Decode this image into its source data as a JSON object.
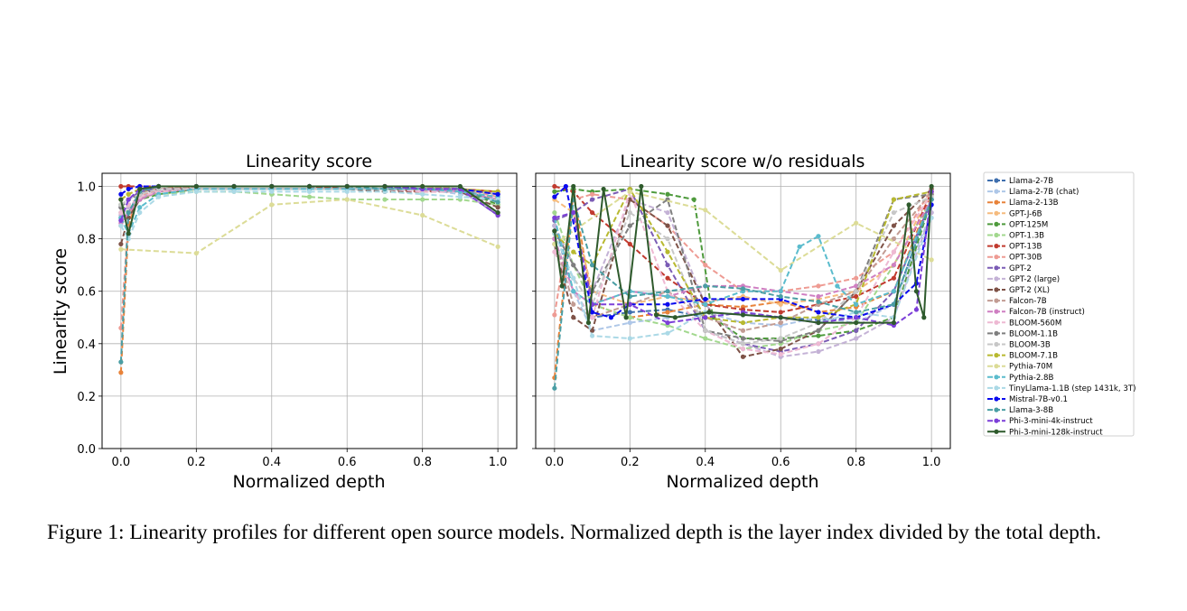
{
  "figure": {
    "caption": "Figure 1: Linearity profiles for different open source models. Normalized depth is the layer index divided by the total depth."
  },
  "legend": [
    {
      "name": "Llama-2-7B",
      "color": "#3f6fae",
      "dash": true
    },
    {
      "name": "Llama-2-7B (chat)",
      "color": "#aec7e8",
      "dash": true
    },
    {
      "name": "Llama-2-13B",
      "color": "#e8833a",
      "dash": true
    },
    {
      "name": "GPT-J-6B",
      "color": "#f5bb7e",
      "dash": true
    },
    {
      "name": "OPT-125M",
      "color": "#4e9a3c",
      "dash": true
    },
    {
      "name": "OPT-1.3B",
      "color": "#a2d88e",
      "dash": true
    },
    {
      "name": "OPT-13B",
      "color": "#c13b2f",
      "dash": true
    },
    {
      "name": "OPT-30B",
      "color": "#ee9b93",
      "dash": true
    },
    {
      "name": "GPT-2",
      "color": "#7b5cb5",
      "dash": true
    },
    {
      "name": "GPT-2 (large)",
      "color": "#c4b2d6",
      "dash": true
    },
    {
      "name": "GPT-2 (XL)",
      "color": "#7e5247",
      "dash": true
    },
    {
      "name": "Falcon-7B",
      "color": "#c29c93",
      "dash": true
    },
    {
      "name": "Falcon-7B (instruct)",
      "color": "#cf7fc2",
      "dash": true
    },
    {
      "name": "BLOOM-560M",
      "color": "#eeb9d3",
      "dash": true
    },
    {
      "name": "BLOOM-1.1B",
      "color": "#7f7f7f",
      "dash": true
    },
    {
      "name": "BLOOM-3B",
      "color": "#c7c7c7",
      "dash": true
    },
    {
      "name": "BLOOM-7.1B",
      "color": "#b8b930",
      "dash": true
    },
    {
      "name": "Pythia-70M",
      "color": "#dcdc97",
      "dash": true
    },
    {
      "name": "Pythia-2.8B",
      "color": "#5bbccd",
      "dash": true
    },
    {
      "name": "TinyLlama-1.1B (step 1431k, 3T)",
      "color": "#abd9e6",
      "dash": true
    },
    {
      "name": "Mistral-7B-v0.1",
      "color": "#0a0aef",
      "dash": true
    },
    {
      "name": "Llama-3-8B",
      "color": "#4a9ea4",
      "dash": true
    },
    {
      "name": "Phi-3-mini-4k-instruct",
      "color": "#7c3fd8",
      "dash": true
    },
    {
      "name": "Phi-3-mini-128k-instruct",
      "color": "#2e5a2c",
      "dash": false
    }
  ],
  "chart_data": [
    {
      "type": "line",
      "title": "Linearity score",
      "xlabel": "Normalized depth",
      "ylabel": "Linearity score",
      "xlim": [
        -0.05,
        1.05
      ],
      "ylim": [
        0.0,
        1.05
      ],
      "xticks": [
        "0.0",
        "0.2",
        "0.4",
        "0.6",
        "0.8",
        "1.0"
      ],
      "yticks": [
        "0.0",
        "0.2",
        "0.4",
        "0.6",
        "0.8",
        "1.0"
      ],
      "grid": true,
      "x": [
        0,
        0.02,
        0.05,
        0.1,
        0.2,
        0.3,
        0.4,
        0.5,
        0.6,
        0.7,
        0.8,
        0.9,
        1.0
      ],
      "series": [
        {
          "name": "Llama-2-7B",
          "y": [
            0.88,
            0.9,
            0.98,
            1,
            1,
            1,
            1,
            1,
            0.99,
            0.99,
            0.99,
            0.98,
            0.95
          ]
        },
        {
          "name": "Llama-2-7B (chat)",
          "y": [
            0.87,
            0.9,
            0.95,
            0.99,
            0.99,
            0.99,
            0.99,
            0.99,
            0.99,
            0.99,
            0.99,
            0.97,
            0.94
          ]
        },
        {
          "name": "Llama-2-13B",
          "y": [
            0.29,
            0.85,
            0.98,
            0.99,
            1,
            1,
            1,
            1,
            1,
            1,
            1,
            0.99,
            0.97
          ]
        },
        {
          "name": "GPT-J-6B",
          "y": [
            0.95,
            0.97,
            0.99,
            1,
            1,
            1,
            1,
            1,
            1,
            1,
            1,
            0.99,
            0.98
          ]
        },
        {
          "name": "OPT-125M",
          "y": [
            0.93,
            0.9,
            0.95,
            0.97,
            0.99,
            0.99,
            0.99,
            0.99,
            0.99,
            0.99,
            0.99,
            0.99,
            0.93
          ]
        },
        {
          "name": "OPT-1.3B",
          "y": [
            0.9,
            0.93,
            0.96,
            0.97,
            0.98,
            0.98,
            0.97,
            0.96,
            0.95,
            0.95,
            0.95,
            0.95,
            0.93
          ]
        },
        {
          "name": "OPT-13B",
          "y": [
            1,
            1,
            1,
            1,
            1,
            1,
            1,
            1,
            0.99,
            0.99,
            0.98,
            0.99,
            0.98
          ]
        },
        {
          "name": "OPT-30B",
          "y": [
            0.46,
            0.88,
            0.96,
            0.99,
            1,
            1,
            1,
            1,
            1,
            1,
            0.99,
            0.99,
            0.96
          ]
        },
        {
          "name": "GPT-2",
          "y": [
            0.92,
            0.95,
            0.98,
            0.99,
            0.99,
            0.99,
            0.99,
            0.99,
            0.99,
            0.99,
            0.99,
            0.99,
            0.89
          ]
        },
        {
          "name": "GPT-2 (large)",
          "y": [
            0.89,
            0.92,
            0.96,
            0.98,
            0.99,
            0.99,
            0.99,
            0.99,
            0.99,
            0.99,
            0.99,
            0.98,
            0.9
          ]
        },
        {
          "name": "GPT-2 (XL)",
          "y": [
            0.78,
            0.88,
            0.95,
            0.98,
            0.99,
            0.99,
            0.99,
            0.99,
            0.99,
            0.98,
            0.98,
            0.98,
            0.92
          ]
        },
        {
          "name": "Falcon-7B",
          "y": [
            0.85,
            0.9,
            0.95,
            0.98,
            0.99,
            0.99,
            0.99,
            0.99,
            0.99,
            0.99,
            0.99,
            0.99,
            0.95
          ]
        },
        {
          "name": "Falcon-7B (instruct)",
          "y": [
            0.86,
            0.9,
            0.95,
            0.98,
            0.99,
            0.99,
            0.99,
            0.99,
            0.99,
            0.99,
            0.99,
            0.98,
            0.95
          ]
        },
        {
          "name": "BLOOM-560M",
          "y": [
            0.9,
            0.93,
            0.96,
            0.98,
            0.99,
            0.99,
            0.99,
            0.99,
            0.99,
            0.99,
            0.98,
            0.98,
            0.96
          ]
        },
        {
          "name": "BLOOM-1.1B",
          "y": [
            0.92,
            0.95,
            0.97,
            0.99,
            0.99,
            0.99,
            0.99,
            0.99,
            0.99,
            0.99,
            0.99,
            0.99,
            0.97
          ]
        },
        {
          "name": "BLOOM-3B",
          "y": [
            0.93,
            0.95,
            0.97,
            0.99,
            0.99,
            0.99,
            0.99,
            0.99,
            0.99,
            0.99,
            0.99,
            0.99,
            0.97
          ]
        },
        {
          "name": "BLOOM-7.1B",
          "y": [
            0.95,
            0.97,
            0.99,
            1,
            1,
            1,
            1,
            1,
            1,
            1,
            0.99,
            0.99,
            0.98
          ]
        },
        {
          "name": "Pythia-70M",
          "x": [
            0,
            0.2,
            0.4,
            0.6,
            0.8,
            1.0
          ],
          "y": [
            0.76,
            0.745,
            0.93,
            0.95,
            0.89,
            0.77
          ]
        },
        {
          "name": "Pythia-2.8B",
          "y": [
            0.88,
            0.82,
            0.92,
            0.97,
            0.99,
            0.99,
            0.99,
            0.99,
            0.99,
            0.99,
            0.99,
            0.98,
            0.96
          ]
        },
        {
          "name": "TinyLlama-1.1B (step 1431k, 3T)",
          "y": [
            0.85,
            0.8,
            0.9,
            0.96,
            0.98,
            0.98,
            0.98,
            0.98,
            0.98,
            0.98,
            0.97,
            0.96,
            0.95
          ]
        },
        {
          "name": "Mistral-7B-v0.1",
          "y": [
            0.97,
            0.99,
            1,
            1,
            1,
            1,
            1,
            1,
            1,
            1,
            0.99,
            0.99,
            0.97
          ]
        },
        {
          "name": "Llama-3-8B",
          "y": [
            0.33,
            0.9,
            0.98,
            1,
            1,
            1,
            1,
            1,
            1,
            0.99,
            0.99,
            0.99,
            0.94
          ]
        },
        {
          "name": "Phi-3-mini-4k-instruct",
          "y": [
            0.87,
            0.95,
            0.99,
            1,
            1,
            1,
            1,
            1,
            1,
            1,
            0.99,
            0.99,
            0.89
          ]
        },
        {
          "name": "Phi-3-mini-128k-instruct",
          "y": [
            0.95,
            0.82,
            0.99,
            1,
            1,
            1,
            1,
            1,
            1,
            1,
            1,
            1,
            0.9
          ]
        }
      ]
    },
    {
      "type": "line",
      "title": "Linearity score w/o residuals",
      "xlabel": "Normalized depth",
      "ylabel": "",
      "xlim": [
        -0.05,
        1.05
      ],
      "ylim": [
        0.0,
        1.05
      ],
      "xticks": [
        "0.0",
        "0.2",
        "0.4",
        "0.6",
        "0.8",
        "1.0"
      ],
      "yticks": [],
      "grid": true,
      "x": [
        0,
        0.05,
        0.1,
        0.2,
        0.3,
        0.4,
        0.5,
        0.6,
        0.7,
        0.8,
        0.9,
        1.0
      ],
      "series": [
        {
          "name": "Llama-2-7B",
          "y": [
            0.85,
            0.6,
            0.5,
            0.52,
            0.53,
            0.5,
            0.52,
            0.5,
            0.49,
            0.5,
            0.55,
            0.95
          ]
        },
        {
          "name": "Llama-2-7B (chat)",
          "y": [
            0.8,
            0.6,
            0.45,
            0.48,
            0.5,
            0.52,
            0.48,
            0.47,
            0.5,
            0.48,
            0.55,
            0.9
          ]
        },
        {
          "name": "Llama-2-13B",
          "y": [
            0.27,
            0.98,
            0.55,
            0.5,
            0.52,
            0.55,
            0.54,
            0.56,
            0.52,
            0.54,
            0.6,
            0.97
          ]
        },
        {
          "name": "GPT-J-6B",
          "y": [
            0.95,
            0.9,
            0.6,
            0.55,
            0.58,
            0.56,
            0.58,
            0.55,
            0.57,
            0.6,
            0.7,
            0.98
          ]
        },
        {
          "name": "OPT-125M",
          "x": [
            0,
            0.05,
            0.1,
            0.2,
            0.3,
            0.37,
            0.42,
            0.5,
            0.6,
            0.7,
            0.8,
            0.9,
            1.0
          ],
          "y": [
            0.98,
            0.99,
            0.98,
            0.99,
            0.97,
            0.95,
            0.5,
            0.42,
            0.42,
            0.43,
            0.45,
            0.5,
            0.95
          ]
        },
        {
          "name": "OPT-1.3B",
          "y": [
            0.9,
            0.7,
            0.55,
            0.5,
            0.47,
            0.42,
            0.38,
            0.4,
            0.45,
            0.48,
            0.7,
            0.95
          ]
        },
        {
          "name": "OPT-13B",
          "y": [
            1.0,
            0.98,
            0.9,
            0.78,
            0.65,
            0.55,
            0.53,
            0.52,
            0.55,
            0.58,
            0.65,
            0.98
          ]
        },
        {
          "name": "OPT-30B",
          "y": [
            0.51,
            0.95,
            0.97,
            0.95,
            0.85,
            0.7,
            0.6,
            0.6,
            0.62,
            0.65,
            0.75,
            0.99
          ]
        },
        {
          "name": "GPT-2",
          "y": [
            0.87,
            0.9,
            0.95,
            0.99,
            0.7,
            0.45,
            0.4,
            0.37,
            0.4,
            0.45,
            0.6,
            0.95
          ]
        },
        {
          "name": "GPT-2 (large)",
          "y": [
            0.85,
            0.7,
            0.6,
            0.95,
            0.9,
            0.55,
            0.4,
            0.35,
            0.37,
            0.42,
            0.5,
            0.9
          ]
        },
        {
          "name": "GPT-2 (XL)",
          "y": [
            0.78,
            0.5,
            0.45,
            0.95,
            0.85,
            0.55,
            0.35,
            0.38,
            0.45,
            0.6,
            0.85,
            0.99
          ]
        },
        {
          "name": "Falcon-7B",
          "y": [
            0.8,
            0.55,
            0.5,
            0.55,
            0.6,
            0.5,
            0.45,
            0.48,
            0.55,
            0.6,
            0.8,
            0.98
          ]
        },
        {
          "name": "Falcon-7B (instruct)",
          "y": [
            0.8,
            0.6,
            0.55,
            0.6,
            0.58,
            0.62,
            0.62,
            0.6,
            0.58,
            0.62,
            0.7,
            0.95
          ]
        },
        {
          "name": "BLOOM-560M",
          "y": [
            0.75,
            0.6,
            0.5,
            0.98,
            0.6,
            0.45,
            0.38,
            0.36,
            0.4,
            0.5,
            0.75,
            0.97
          ]
        },
        {
          "name": "BLOOM-1.1B",
          "y": [
            0.83,
            0.7,
            0.6,
            0.85,
            0.95,
            0.45,
            0.42,
            0.41,
            0.45,
            0.6,
            0.95,
            0.97
          ]
        },
        {
          "name": "BLOOM-3B",
          "y": [
            0.78,
            0.65,
            0.55,
            0.9,
            0.8,
            0.45,
            0.4,
            0.42,
            0.48,
            0.6,
            0.9,
            0.96
          ]
        },
        {
          "name": "BLOOM-7.1B",
          "y": [
            0.82,
            0.75,
            0.7,
            0.99,
            0.75,
            0.5,
            0.48,
            0.5,
            0.5,
            0.55,
            0.95,
            0.98
          ]
        },
        {
          "name": "Pythia-70M",
          "x": [
            0,
            0.2,
            0.4,
            0.6,
            0.8,
            1.0
          ],
          "y": [
            0.78,
            0.98,
            0.91,
            0.68,
            0.86,
            0.72
          ]
        },
        {
          "name": "Pythia-2.8B",
          "x": [
            0,
            0.05,
            0.1,
            0.2,
            0.3,
            0.4,
            0.5,
            0.6,
            0.65,
            0.7,
            0.75,
            0.8,
            0.9,
            1.0
          ],
          "y": [
            0.88,
            0.6,
            0.55,
            0.6,
            0.58,
            0.55,
            0.6,
            0.6,
            0.77,
            0.81,
            0.62,
            0.55,
            0.6,
            0.95
          ]
        },
        {
          "name": "TinyLlama-1.1B (step 1431k, 3T)",
          "y": [
            0.82,
            0.65,
            0.43,
            0.42,
            0.44,
            0.52,
            0.51,
            0.5,
            0.48,
            0.52,
            0.5,
            0.88
          ]
        },
        {
          "name": "Mistral-7B-v0.1",
          "x": [
            0,
            0.03,
            0.1,
            0.15,
            0.2,
            0.3,
            0.4,
            0.5,
            0.6,
            0.7,
            0.8,
            0.9,
            0.96,
            1.0
          ],
          "y": [
            0.96,
            1.0,
            0.52,
            0.5,
            0.55,
            0.55,
            0.57,
            0.57,
            0.57,
            0.52,
            0.5,
            0.55,
            0.63,
            0.93
          ]
        },
        {
          "name": "Llama-3-8B",
          "y": [
            0.23,
            0.95,
            0.7,
            0.58,
            0.6,
            0.62,
            0.61,
            0.58,
            0.56,
            0.52,
            0.55,
            0.95
          ]
        },
        {
          "name": "Phi-3-mini-4k-instruct",
          "x": [
            0,
            0.05,
            0.1,
            0.2,
            0.3,
            0.4,
            0.5,
            0.6,
            0.7,
            0.8,
            0.9,
            0.96,
            1.0
          ],
          "y": [
            0.88,
            0.9,
            0.55,
            0.55,
            0.48,
            0.5,
            0.52,
            0.5,
            0.48,
            0.5,
            0.47,
            0.53,
            0.98
          ]
        },
        {
          "name": "Phi-3-mini-128k-instruct",
          "x": [
            0,
            0.02,
            0.05,
            0.09,
            0.13,
            0.19,
            0.23,
            0.27,
            0.32,
            0.41,
            0.5,
            0.6,
            0.7,
            0.8,
            0.9,
            0.94,
            0.96,
            0.98,
            1.0
          ],
          "y": [
            0.83,
            0.62,
            1.0,
            0.48,
            0.99,
            0.5,
            1.0,
            0.51,
            0.5,
            0.52,
            0.51,
            0.5,
            0.48,
            0.48,
            0.48,
            0.93,
            0.6,
            0.5,
            1.0
          ]
        }
      ]
    }
  ]
}
